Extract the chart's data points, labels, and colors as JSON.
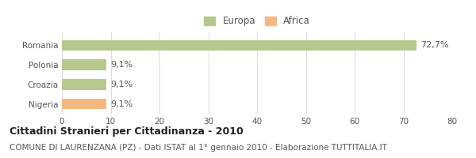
{
  "categories": [
    "Romania",
    "Polonia",
    "Croazia",
    "Nigeria"
  ],
  "values": [
    72.7,
    9.1,
    9.1,
    9.1
  ],
  "labels": [
    "72,7%",
    "9,1%",
    "9,1%",
    "9,1%"
  ],
  "bar_colors": [
    "#b5c98e",
    "#b5c98e",
    "#b5c98e",
    "#f5b97f"
  ],
  "legend_labels": [
    "Europa",
    "Africa"
  ],
  "legend_colors": [
    "#b5c98e",
    "#f5b97f"
  ],
  "xlim": [
    0,
    80
  ],
  "xticks": [
    0,
    10,
    20,
    30,
    40,
    50,
    60,
    70,
    80
  ],
  "title": "Cittadini Stranieri per Cittadinanza - 2010",
  "subtitle": "COMUNE DI LAURENZANA (PZ) - Dati ISTAT al 1° gennaio 2010 - Elaborazione TUTTITALIA.IT",
  "title_fontsize": 9,
  "subtitle_fontsize": 7.5,
  "label_fontsize": 8,
  "tick_fontsize": 7.5,
  "legend_fontsize": 8.5,
  "bg_color": "#ffffff",
  "grid_color": "#cccccc",
  "bar_height": 0.55
}
